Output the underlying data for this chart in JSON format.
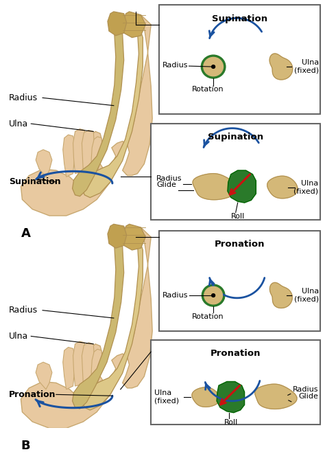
{
  "bg_color": "#ffffff",
  "skin_color": "#e8c9a0",
  "skin_edge": "#c8a870",
  "bone_fill": "#d4b878",
  "bone_edge": "#b09050",
  "green_color": "#2a7a2a",
  "red_color": "#cc1111",
  "blue_color": "#1a52a0",
  "box_edge": "#666666",
  "text_color": "#111111",
  "panel_A_label": "A",
  "panel_B_label": "B",
  "supination_text": "Supination",
  "pronation_text": "Pronation",
  "radius_text": "Radius",
  "ulna_fixed_text": "Ulna\n(fixed)",
  "ulna_text": "Ulna",
  "rotation_text": "Rotation",
  "glide_text": "Glide",
  "roll_text": "Roll"
}
